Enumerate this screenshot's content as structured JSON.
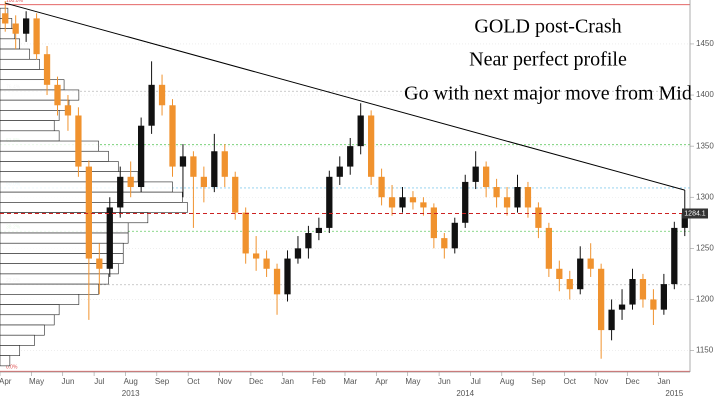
{
  "chart_data": {
    "type": "candlestick",
    "title_lines": [
      "GOLD post-Crash",
      "Near perfect profile",
      "Go with next major move from Mid"
    ],
    "categories": [
      "Apr",
      null,
      null,
      "May",
      null,
      null,
      "Jun",
      null,
      null,
      "Jul",
      null,
      null,
      "Aug",
      null,
      null,
      "Sep",
      null,
      null,
      "Oct",
      null,
      null,
      "Nov",
      null,
      null,
      "Dec",
      null,
      null,
      "Jan",
      null,
      null,
      "Feb",
      null,
      null,
      "Mar",
      null,
      null,
      "Apr",
      null,
      null,
      "May",
      null,
      null,
      "Jun",
      null,
      null,
      "Jul",
      null,
      null,
      "Aug",
      null,
      null,
      "Sep",
      null,
      null,
      "Oct",
      null,
      null,
      "Nov",
      null,
      null,
      "Dec",
      null,
      null,
      "Jan",
      null,
      null
    ],
    "year_labels": [
      null,
      null,
      null,
      null,
      null,
      null,
      null,
      null,
      null,
      null,
      null,
      null,
      "2013",
      null,
      null,
      null,
      null,
      null,
      null,
      null,
      null,
      null,
      null,
      null,
      null,
      null,
      null,
      null,
      null,
      null,
      null,
      null,
      null,
      null,
      null,
      null,
      null,
      null,
      null,
      null,
      null,
      null,
      null,
      null,
      "2014",
      null,
      null,
      null,
      null,
      null,
      null,
      null,
      null,
      null,
      null,
      null,
      null,
      null,
      null,
      null,
      null,
      null,
      null,
      null,
      "2015",
      null
    ],
    "open": [
      1480,
      1470,
      1460,
      1475,
      1440,
      1410,
      1390,
      1380,
      1330,
      1240,
      1230,
      1290,
      1320,
      1310,
      1370,
      1410,
      1390,
      1330,
      1340,
      1320,
      1310,
      1345,
      1320,
      1285,
      1245,
      1240,
      1230,
      1205,
      1240,
      1250,
      1265,
      1270,
      1320,
      1330,
      1350,
      1380,
      1320,
      1300,
      1290,
      1300,
      1295,
      1290,
      1260,
      1250,
      1275,
      1315,
      1330,
      1310,
      1300,
      1290,
      1310,
      1290,
      1270,
      1230,
      1220,
      1210,
      1240,
      1230,
      1170,
      1190,
      1195,
      1220,
      1200,
      1190,
      1215,
      1270
    ],
    "high": [
      1492,
      1478,
      1482,
      1480,
      1448,
      1418,
      1400,
      1388,
      1336,
      1255,
      1300,
      1330,
      1335,
      1378,
      1433,
      1420,
      1396,
      1352,
      1345,
      1330,
      1362,
      1352,
      1325,
      1290,
      1262,
      1248,
      1235,
      1248,
      1262,
      1272,
      1280,
      1326,
      1340,
      1358,
      1392,
      1385,
      1328,
      1312,
      1310,
      1306,
      1300,
      1294,
      1265,
      1280,
      1322,
      1345,
      1335,
      1318,
      1310,
      1322,
      1315,
      1295,
      1275,
      1238,
      1228,
      1252,
      1255,
      1235,
      1200,
      1210,
      1230,
      1225,
      1210,
      1225,
      1276,
      1307
    ],
    "low": [
      1462,
      1445,
      1452,
      1435,
      1400,
      1380,
      1365,
      1320,
      1180,
      1205,
      1222,
      1280,
      1300,
      1305,
      1362,
      1380,
      1320,
      1300,
      1270,
      1295,
      1305,
      1310,
      1278,
      1235,
      1228,
      1222,
      1185,
      1198,
      1235,
      1240,
      1258,
      1265,
      1312,
      1322,
      1342,
      1312,
      1292,
      1282,
      1285,
      1288,
      1282,
      1250,
      1240,
      1245,
      1270,
      1308,
      1300,
      1290,
      1282,
      1285,
      1280,
      1260,
      1222,
      1208,
      1200,
      1205,
      1222,
      1142,
      1160,
      1180,
      1190,
      1192,
      1175,
      1185,
      1210,
      1262
    ],
    "close": [
      1470,
      1460,
      1475,
      1440,
      1410,
      1390,
      1380,
      1330,
      1240,
      1230,
      1290,
      1320,
      1310,
      1370,
      1410,
      1390,
      1330,
      1340,
      1320,
      1310,
      1345,
      1320,
      1285,
      1245,
      1240,
      1230,
      1205,
      1240,
      1250,
      1265,
      1270,
      1320,
      1330,
      1350,
      1380,
      1320,
      1300,
      1290,
      1300,
      1295,
      1290,
      1260,
      1250,
      1275,
      1315,
      1330,
      1310,
      1300,
      1290,
      1310,
      1290,
      1270,
      1230,
      1220,
      1210,
      1240,
      1230,
      1170,
      1190,
      1195,
      1220,
      1200,
      1190,
      1215,
      1270,
      1284
    ],
    "up_color": "#111111",
    "down_color": "#f0922e",
    "ylim": [
      1129,
      1493
    ],
    "yticks": [
      1150,
      1200,
      1250,
      1300,
      1350,
      1400,
      1450
    ],
    "grid": true,
    "last_price": 1284.1,
    "trendline": {
      "start": [
        0,
        1490
      ],
      "end": [
        65,
        1307
      ]
    },
    "fib_levels": [
      {
        "price": 1488.4,
        "label": "100.0%",
        "color": "#e05050"
      },
      {
        "price": 1403.7,
        "label": "76.4%",
        "color": "#bbbbbb"
      },
      {
        "price": 1351.4,
        "label": "61.8%",
        "color": "#66cc66"
      },
      {
        "price": 1309.1,
        "label": "50.0%",
        "color": "#88ccee"
      },
      {
        "price": 1266.7,
        "label": "38.2%",
        "color": "#66cc66"
      },
      {
        "price": 1214.4,
        "label": "23.6%",
        "color": "#bbbbbb"
      },
      {
        "price": 1129.7,
        "label": "0.0%",
        "color": "#e05050"
      }
    ],
    "volume_profile": {
      "xlim": [
        0,
        700
      ],
      "prices": [
        1480,
        1470,
        1460,
        1450,
        1440,
        1430,
        1420,
        1410,
        1400,
        1390,
        1380,
        1370,
        1360,
        1350,
        1340,
        1330,
        1320,
        1310,
        1300,
        1290,
        1280,
        1270,
        1260,
        1250,
        1240,
        1230,
        1220,
        1210,
        1200,
        1190,
        1180,
        1170,
        1160,
        1150,
        1140
      ],
      "values": [
        8,
        12,
        15,
        20,
        30,
        40,
        50,
        65,
        80,
        70,
        60,
        55,
        60,
        100,
        110,
        120,
        140,
        175,
        185,
        190,
        150,
        130,
        130,
        125,
        125,
        120,
        110,
        100,
        80,
        60,
        55,
        45,
        35,
        20,
        10
      ]
    }
  }
}
